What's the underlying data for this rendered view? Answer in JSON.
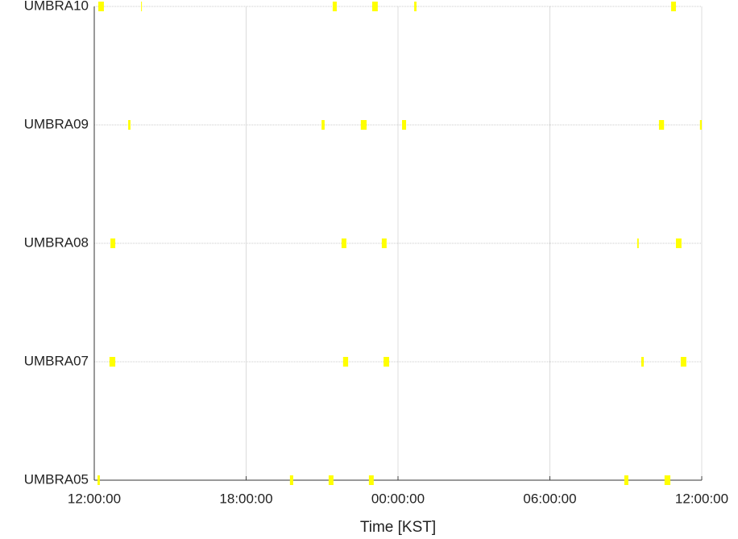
{
  "chart_data": {
    "type": "timeline",
    "xlabel": "Time [KST]",
    "xlim": [
      0,
      24
    ],
    "xticks": [
      {
        "value": 0,
        "label": "12:00:00"
      },
      {
        "value": 6,
        "label": "18:00:00"
      },
      {
        "value": 12,
        "label": "00:00:00"
      },
      {
        "value": 18,
        "label": "06:00:00"
      },
      {
        "value": 24,
        "label": "12:00:00"
      }
    ],
    "grid": true,
    "color": "#ffff00",
    "series": [
      {
        "name": "UMBRA10",
        "starts": [
          0.16,
          1.85,
          9.42,
          10.98,
          12.64,
          22.79
        ],
        "ends": [
          0.38,
          1.88,
          9.58,
          11.2,
          12.73,
          22.98
        ]
      },
      {
        "name": "UMBRA09",
        "starts": [
          1.34,
          8.98,
          10.53,
          12.16,
          22.31,
          23.93
        ],
        "ends": [
          1.43,
          9.1,
          10.76,
          12.32,
          22.51,
          24
        ]
      },
      {
        "name": "UMBRA08",
        "starts": [
          0.64,
          9.77,
          11.36,
          21.45,
          22.98
        ],
        "ends": [
          0.83,
          9.96,
          11.55,
          21.51,
          23.2
        ]
      },
      {
        "name": "UMBRA07",
        "starts": [
          0.6,
          9.83,
          11.43,
          21.61,
          23.17
        ],
        "ends": [
          0.83,
          10.03,
          11.65,
          21.71,
          23.39
        ]
      },
      {
        "name": "UMBRA05",
        "starts": [
          0.13,
          7.73,
          9.26,
          10.85,
          20.94,
          22.53
        ],
        "ends": [
          0.22,
          7.86,
          9.45,
          11.04,
          21.1,
          22.76
        ]
      }
    ]
  }
}
